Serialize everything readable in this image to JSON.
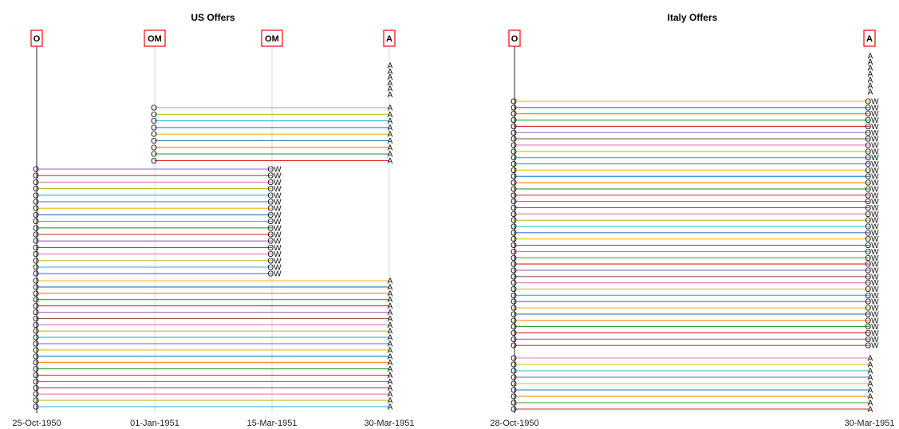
{
  "panels": [
    {
      "title": "US Offers",
      "x_ticks": [
        "25-Oct-1950",
        "01-Jan-1951",
        "15-Mar-1951",
        "30-Mar-1951"
      ],
      "events": [
        "O",
        "OM",
        "OM",
        "A"
      ]
    },
    {
      "title": "Italy Offers",
      "x_ticks": [
        "28-Oct-1950",
        "30-Mar-1951"
      ],
      "events": [
        "O",
        "A"
      ]
    }
  ],
  "colors": {
    "event_box": "#ff0000",
    "series_palette": [
      "#1f77b4",
      "#ff7f0e",
      "#2ca02c",
      "#d62728",
      "#9467bd",
      "#8c564b",
      "#e377c2",
      "#bcbd22",
      "#17becf",
      "#4c6fd4",
      "#f2b705"
    ]
  },
  "chart_data": [
    {
      "type": "timeline",
      "title": "US Offers",
      "x_axis": "date",
      "x_ticks": [
        "25-Oct-1950",
        "01-Jan-1951",
        "15-Mar-1951",
        "30-Mar-1951"
      ],
      "events": [
        {
          "label": "O",
          "date": "25-Oct-1950"
        },
        {
          "label": "OM",
          "date": "01-Jan-1951"
        },
        {
          "label": "OM",
          "date": "15-Mar-1951"
        },
        {
          "label": "A",
          "date": "30-Mar-1951"
        }
      ],
      "groups": [
        {
          "start": "30-Mar-1951",
          "end": "30-Mar-1951",
          "start_marker": "",
          "end_marker": "A",
          "count": 6
        },
        {
          "start": "01-Jan-1951",
          "end": "30-Mar-1951",
          "start_marker": "O",
          "end_marker": "A",
          "count": 9
        },
        {
          "start": "25-Oct-1950",
          "end": "15-Mar-1951",
          "start_marker": "O",
          "end_marker": "OW",
          "count": 17
        },
        {
          "start": "25-Oct-1950",
          "end": "30-Mar-1951",
          "start_marker": "O",
          "end_marker": "A",
          "count": 21
        }
      ]
    },
    {
      "type": "timeline",
      "title": "Italy Offers",
      "x_axis": "date",
      "x_ticks": [
        "28-Oct-1950",
        "30-Mar-1951"
      ],
      "events": [
        {
          "label": "O",
          "date": "28-Oct-1950"
        },
        {
          "label": "A",
          "date": "30-Mar-1951"
        }
      ],
      "groups": [
        {
          "start": "30-Mar-1951",
          "end": "30-Mar-1951",
          "start_marker": "",
          "end_marker": "A",
          "count": 7
        },
        {
          "start": "28-Oct-1950",
          "end": "30-Mar-1951",
          "start_marker": "O",
          "end_marker": "OW",
          "count": 40
        },
        {
          "start": "28-Oct-1950",
          "end": "30-Mar-1951",
          "start_marker": "O",
          "end_marker": "A",
          "count": 9
        }
      ]
    }
  ]
}
